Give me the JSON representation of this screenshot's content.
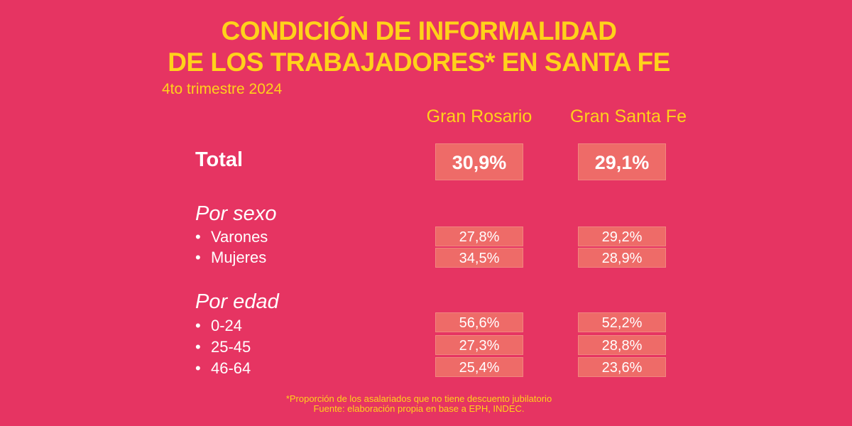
{
  "title_line1": "CONDICIÓN DE INFORMALIDAD",
  "title_line2": "DE LOS TRABAJADORES* EN SANTA FE",
  "subtitle": "4to trimestre 2024",
  "footnote": "*Proporción de los asalariados que no tiene descuento jubilatorio",
  "source": "Fuente: elaboración propia en base a EPH, INDEC.",
  "colors": {
    "background": "#e63462",
    "accent": "#ffd21a",
    "cell": "#ee6b68",
    "text": "#ffffff"
  },
  "chart_data": {
    "type": "table",
    "columns": [
      "Gran Rosario",
      "Gran Santa Fe"
    ],
    "total": {
      "label": "Total",
      "values": [
        "30,9%",
        "29,1%"
      ]
    },
    "sections": [
      {
        "title": "Por sexo",
        "rows": [
          {
            "label": "Varones",
            "values": [
              "27,8%",
              "29,2%"
            ]
          },
          {
            "label": "Mujeres",
            "values": [
              "34,5%",
              "28,9%"
            ]
          }
        ]
      },
      {
        "title": "Por edad",
        "rows": [
          {
            "label": "0-24",
            "values": [
              "56,6%",
              "52,2%"
            ]
          },
          {
            "label": "25-45",
            "values": [
              "27,3%",
              "28,8%"
            ]
          },
          {
            "label": "46-64",
            "values": [
              "25,4%",
              "23,6%"
            ]
          }
        ]
      }
    ]
  }
}
